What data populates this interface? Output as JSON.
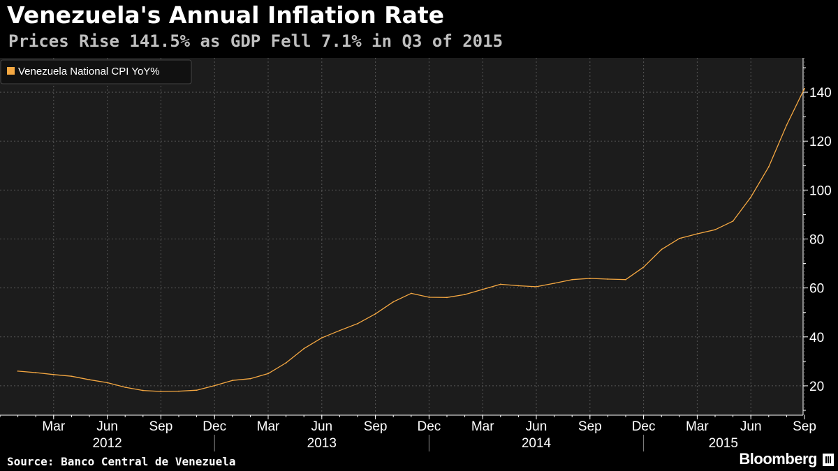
{
  "chart_data": {
    "type": "line",
    "title": "Venezuela's Annual Inflation Rate",
    "subtitle": "Prices Rise 141.5% as GDP Fell 7.1% in Q3 of 2015",
    "legend": {
      "label": "Venezuela National CPI YoY%",
      "placement": "top-left"
    },
    "series": [
      {
        "name": "Venezuela National CPI YoY%",
        "color": "#f5a842",
        "x": [
          "2012-01",
          "2012-02",
          "2012-03",
          "2012-04",
          "2012-05",
          "2012-06",
          "2012-07",
          "2012-08",
          "2012-09",
          "2012-10",
          "2012-11",
          "2012-12",
          "2013-01",
          "2013-02",
          "2013-03",
          "2013-04",
          "2013-05",
          "2013-06",
          "2013-07",
          "2013-08",
          "2013-09",
          "2013-10",
          "2013-11",
          "2013-12",
          "2014-01",
          "2014-02",
          "2014-03",
          "2014-04",
          "2014-05",
          "2014-06",
          "2014-07",
          "2014-08",
          "2014-09",
          "2014-10",
          "2014-11",
          "2014-12",
          "2015-01",
          "2015-02",
          "2015-03",
          "2015-04",
          "2015-05",
          "2015-06",
          "2015-07",
          "2015-08",
          "2015-09"
        ],
        "values": [
          26.0,
          25.4,
          24.6,
          23.9,
          22.5,
          21.3,
          19.4,
          18.1,
          17.7,
          17.8,
          18.2,
          20.1,
          22.2,
          22.9,
          25.0,
          29.4,
          35.2,
          39.6,
          42.6,
          45.4,
          49.4,
          54.3,
          57.8,
          56.2,
          56.1,
          57.3,
          59.4,
          61.5,
          60.9,
          60.5,
          61.9,
          63.4,
          63.9,
          63.6,
          63.4,
          68.5,
          75.7,
          80.2,
          82.1,
          83.8,
          87.3,
          97.1,
          109.5,
          126.5,
          141.5
        ]
      }
    ],
    "y_axis": {
      "ticks": [
        20,
        40,
        60,
        80,
        100,
        120,
        140
      ],
      "range": [
        8,
        154
      ],
      "side": "right"
    },
    "x_axis": {
      "month_ticks": [
        {
          "label": "Mar",
          "x": "2012-03"
        },
        {
          "label": "Jun",
          "x": "2012-06"
        },
        {
          "label": "Sep",
          "x": "2012-09"
        },
        {
          "label": "Dec",
          "x": "2012-12"
        },
        {
          "label": "Mar",
          "x": "2013-03"
        },
        {
          "label": "Jun",
          "x": "2013-06"
        },
        {
          "label": "Sep",
          "x": "2013-09"
        },
        {
          "label": "Dec",
          "x": "2013-12"
        },
        {
          "label": "Mar",
          "x": "2014-03"
        },
        {
          "label": "Jun",
          "x": "2014-06"
        },
        {
          "label": "Sep",
          "x": "2014-09"
        },
        {
          "label": "Dec",
          "x": "2014-12"
        },
        {
          "label": "Mar",
          "x": "2015-03"
        },
        {
          "label": "Jun",
          "x": "2015-06"
        },
        {
          "label": "Sep",
          "x": "2015-09"
        }
      ],
      "years": [
        {
          "label": "2012",
          "from": "2011-12",
          "to": "2012-12"
        },
        {
          "label": "2013",
          "from": "2012-12",
          "to": "2013-12"
        },
        {
          "label": "2014",
          "from": "2013-12",
          "to": "2014-12"
        },
        {
          "label": "2015",
          "from": "2014-12",
          "to": "2015-10"
        }
      ]
    },
    "grid": true
  },
  "footer": {
    "source": "Source: Banco Central de Venezuela",
    "brand": "Bloomberg"
  },
  "colors": {
    "background": "#000000",
    "plot_background": "#1c1c1c",
    "line": "#f5a842",
    "grid": "#555555",
    "subtitle": "#bfbfbf"
  }
}
